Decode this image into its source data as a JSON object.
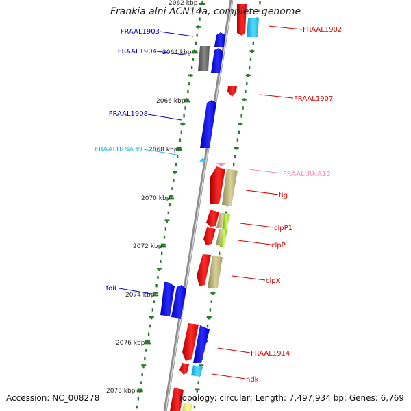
{
  "title": "Frankia alni ACN14a, complete genome",
  "footer": {
    "accession": "Accession: NC_008278",
    "topology": "Topology: circular; Length: 7,497,934 bp; Genes: 6,769"
  },
  "scale_labels": [
    "2062 kbp",
    "2064 kbp",
    "2066 kbp",
    "2068 kbp",
    "2070 kbp",
    "2072 kbp",
    "2074 kbp",
    "2076 kbp",
    "2078 kbp"
  ],
  "gene_labels_left": [
    "FRAAL1903",
    "FRAAL1904",
    "FRAAL1908",
    "FRAALtRNA39",
    "folC"
  ],
  "gene_labels_right": [
    "FRAAL1902",
    "FRAAL1907",
    "FRAALtRNA13",
    "tig",
    "clpP1",
    "clpP",
    "clpX",
    "FRAAL1914",
    "ndk"
  ],
  "colors": {
    "forward_cds": "#0000ee",
    "reverse_cds": "#ee0000",
    "trna": "#33ccee",
    "rrna_pink": "#ff88bb",
    "khaki": "#bdb77b",
    "lime": "#aaee33",
    "gray_feature": "#666666",
    "backbone": "#8c8c8c",
    "ticks": "#2a7a2a",
    "label_blue": "#0000cc",
    "label_cyan": "#22bbdd",
    "label_red": "#dd0000",
    "label_pink": "#ff88bb"
  }
}
